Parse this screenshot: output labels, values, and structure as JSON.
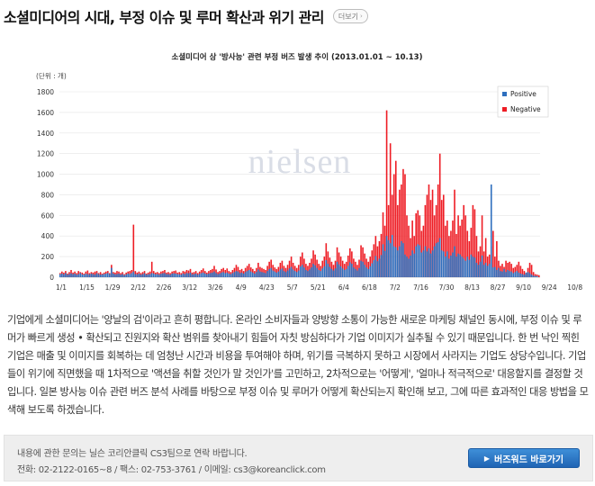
{
  "page": {
    "title": "소셜미디어의 시대, 부정 이슈 및 루머 확산과 위기 관리",
    "more_label": "더보기",
    "more_icon": "chevron-right",
    "body_paragraph": "기업에게 소셜미디어는 '양날의 검'이라고 흔히 평합니다. 온라인 소비자들과 양방향 소통이 가능한 새로운 마케팅 채널인 동시에, 부정 이슈 및 루머가 빠르게 생성 • 확산되고 진원지와 확산 범위를 찾아내기 힘들어 자칫 방심하다가 기업 이미지가 실추될 수 있기 때문입니다. 한 번 낙인 찍힌 기업은 매출 및 이미지를 회복하는 데 엄청난 시간과 비용을 투여해야 하며, 위기를 극복하지 못하고 시장에서 사라지는 기업도 상당수입니다. 기업들이 위기에 직면했을 때 1차적으로 '액션을 취할 것인가 말 것인가'를 고민하고, 2차적으로는 '어떻게', '얼마나 적극적으로' 대응할지를 결정할 것입니다. 일본 방사능 이슈 관련 버즈 분석 사례를 바탕으로 부정 이슈 및 루머가 어떻게 확산되는지 확인해 보고, 그에 따른 효과적인 대응 방법을 모색해 보도록 하겠습니다."
  },
  "footer": {
    "line1": "내용에 관한 문의는 닐슨 코리안클릭 CS3팀으로 연락 바랍니다.",
    "line2": "전화: 02-2122-0165~8 / 팩스: 02-753-3761 / 이메일: cs3@koreanclick.com",
    "button_label": "버즈워드 바로가기",
    "button_icon": "arrow-right"
  },
  "chart_data": {
    "type": "bar",
    "title": "소셜미디어 상 '방사능' 관련 부정 버즈 발생 추이 (2013.01.01 ~ 10.13)",
    "unit_label": "(단위 : 개)",
    "watermark": "nielsen",
    "ylim": [
      0,
      1800
    ],
    "yticks": [
      0,
      200,
      400,
      600,
      800,
      1000,
      1200,
      1400,
      1600,
      1800
    ],
    "x_start": "2013-01-01",
    "x_end": "2013-10-13",
    "xtick_labels": [
      "1/1",
      "1/15",
      "1/29",
      "2/12",
      "2/26",
      "3/12",
      "3/26",
      "4/9",
      "4/23",
      "5/7",
      "5/21",
      "6/4",
      "6/18",
      "7/2",
      "7/16",
      "7/30",
      "8/13",
      "8/27",
      "9/10",
      "9/24",
      "10/8"
    ],
    "grid": true,
    "legend_position": "top-right",
    "colors": {
      "positive": "#2e6fbe",
      "negative": "#ee1c24"
    },
    "series": [
      {
        "name": "Positive",
        "key": "positive"
      },
      {
        "name": "Negative",
        "key": "negative"
      }
    ],
    "negative": [
      40,
      55,
      45,
      60,
      35,
      50,
      70,
      45,
      55,
      40,
      60,
      50,
      45,
      35,
      55,
      65,
      40,
      50,
      45,
      55,
      60,
      40,
      50,
      35,
      45,
      55,
      60,
      40,
      120,
      50,
      45,
      60,
      55,
      40,
      50,
      30,
      45,
      55,
      60,
      70,
      510,
      60,
      45,
      55,
      40,
      50,
      60,
      35,
      45,
      55,
      150,
      60,
      45,
      50,
      40,
      55,
      60,
      70,
      45,
      50,
      40,
      55,
      60,
      65,
      45,
      50,
      40,
      60,
      55,
      70,
      65,
      80,
      45,
      50,
      60,
      40,
      55,
      70,
      85,
      60,
      45,
      60,
      70,
      80,
      110,
      75,
      50,
      60,
      80,
      90,
      70,
      85,
      60,
      50,
      70,
      90,
      120,
      100,
      70,
      80,
      60,
      90,
      110,
      130,
      95,
      80,
      60,
      90,
      140,
      100,
      90,
      80,
      70,
      110,
      150,
      170,
      120,
      95,
      80,
      100,
      140,
      160,
      110,
      90,
      120,
      160,
      200,
      140,
      110,
      90,
      120,
      200,
      240,
      180,
      130,
      110,
      140,
      180,
      260,
      220,
      170,
      130,
      110,
      160,
      200,
      330,
      250,
      190,
      150,
      120,
      160,
      290,
      240,
      200,
      160,
      130,
      150,
      210,
      280,
      250,
      180,
      150,
      120,
      170,
      310,
      290,
      230,
      180,
      150,
      200,
      260,
      320,
      400,
      300,
      350,
      420,
      630,
      500,
      1620,
      700,
      1300,
      800,
      1000,
      1130,
      700,
      850,
      900,
      1050,
      1000,
      600,
      500,
      380,
      550,
      400,
      620,
      650,
      600,
      450,
      500,
      700,
      800,
      900,
      750,
      850,
      600,
      700,
      900,
      1200,
      750,
      800,
      500,
      550,
      400,
      450,
      550,
      850,
      420,
      600,
      500,
      560,
      700,
      600,
      450,
      350,
      480,
      700,
      660,
      400,
      250,
      300,
      600,
      250,
      380,
      200,
      220,
      300,
      450,
      200,
      350,
      160,
      110,
      130,
      100,
      160,
      140,
      150,
      130,
      90,
      100,
      120,
      150,
      110,
      80,
      60,
      40,
      90,
      140,
      120,
      50,
      30,
      25,
      20
    ],
    "positive": [
      30,
      35,
      28,
      40,
      25,
      30,
      38,
      30,
      35,
      25,
      30,
      40,
      28,
      25,
      33,
      30,
      28,
      35,
      30,
      25,
      38,
      30,
      25,
      28,
      30,
      35,
      40,
      30,
      90,
      35,
      28,
      30,
      35,
      25,
      30,
      20,
      28,
      35,
      30,
      40,
      55,
      30,
      28,
      35,
      25,
      30,
      38,
      25,
      28,
      30,
      40,
      35,
      28,
      30,
      25,
      33,
      38,
      40,
      30,
      30,
      25,
      35,
      38,
      35,
      30,
      28,
      25,
      35,
      30,
      40,
      38,
      45,
      28,
      30,
      35,
      25,
      33,
      40,
      45,
      35,
      30,
      35,
      40,
      45,
      55,
      40,
      30,
      35,
      45,
      50,
      40,
      45,
      35,
      30,
      40,
      50,
      60,
      55,
      40,
      45,
      35,
      50,
      60,
      70,
      55,
      45,
      35,
      50,
      75,
      55,
      50,
      45,
      40,
      60,
      80,
      90,
      65,
      55,
      45,
      55,
      75,
      85,
      60,
      50,
      65,
      85,
      100,
      75,
      60,
      50,
      65,
      105,
      120,
      95,
      70,
      60,
      75,
      95,
      130,
      115,
      90,
      70,
      60,
      85,
      105,
      165,
      130,
      100,
      80,
      65,
      85,
      150,
      125,
      105,
      85,
      70,
      80,
      110,
      145,
      130,
      95,
      80,
      65,
      90,
      160,
      150,
      120,
      95,
      80,
      105,
      135,
      165,
      205,
      155,
      180,
      215,
      320,
      255,
      400,
      360,
      330,
      410,
      300,
      290,
      260,
      300,
      350,
      330,
      220,
      200,
      180,
      210,
      260,
      230,
      300,
      320,
      310,
      240,
      260,
      300,
      250,
      280,
      230,
      260,
      300,
      330,
      340,
      380,
      260,
      250,
      200,
      250,
      180,
      210,
      240,
      300,
      200,
      230,
      220,
      200,
      180,
      160,
      200,
      170,
      220,
      200,
      190,
      140,
      120,
      150,
      210,
      120,
      140,
      110,
      130,
      900,
      95,
      100,
      70,
      90,
      60,
      55,
      80,
      50,
      70,
      60,
      55,
      40,
      50,
      60,
      45,
      35,
      30,
      25,
      45,
      50,
      40,
      25,
      15,
      12,
      10
    ]
  }
}
